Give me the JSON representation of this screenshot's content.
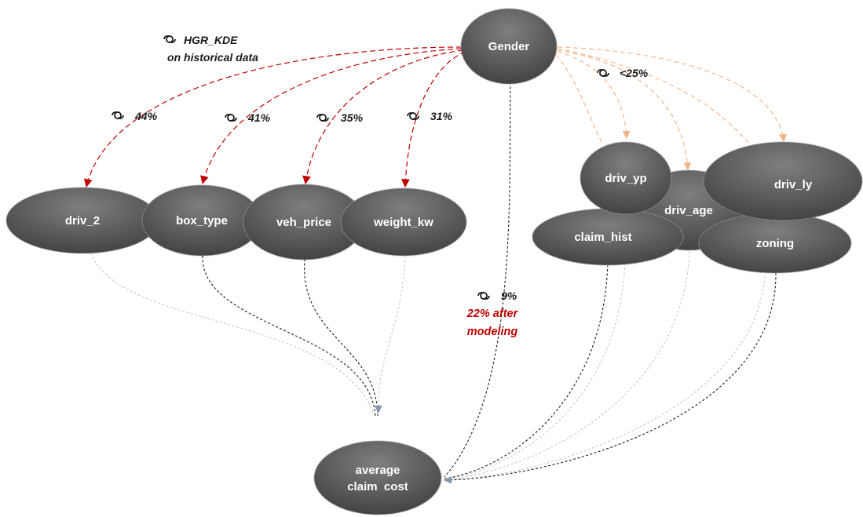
{
  "nodes": {
    "gender": "Gender",
    "driv_2": "driv_2",
    "box_type": "box_type",
    "veh_price": "veh_price",
    "weight_kw": "weight_kw",
    "driv_yp": "driv_yp",
    "driv_age": "driv_age",
    "driv_ly": "driv_ly",
    "claim_hist": "claim_hist",
    "zoning": "zoning",
    "target_line1": "average",
    "target_line2": "claim  cost"
  },
  "annotations": {
    "method_line1": "HGR_KDE",
    "method_line2": "on historical data",
    "p_driv_2": "44%",
    "p_box_type": "41%",
    "p_veh_price": "35%",
    "p_weight_kw": "31%",
    "p_right_group": "<25%",
    "p_direct": "9%",
    "after_line1": "22% after",
    "after_line2": "modeling"
  },
  "colors": {
    "strong_edge": "#c00000",
    "weak_edge": "#f4b183",
    "node_fill": "#595959",
    "after_text": "#c00000",
    "model_edge_dark": "#1a1a1a",
    "model_edge_light": "#bfbfbf",
    "arrow_blue_gray": "#8497b0"
  },
  "icons": [
    "link-icon"
  ]
}
